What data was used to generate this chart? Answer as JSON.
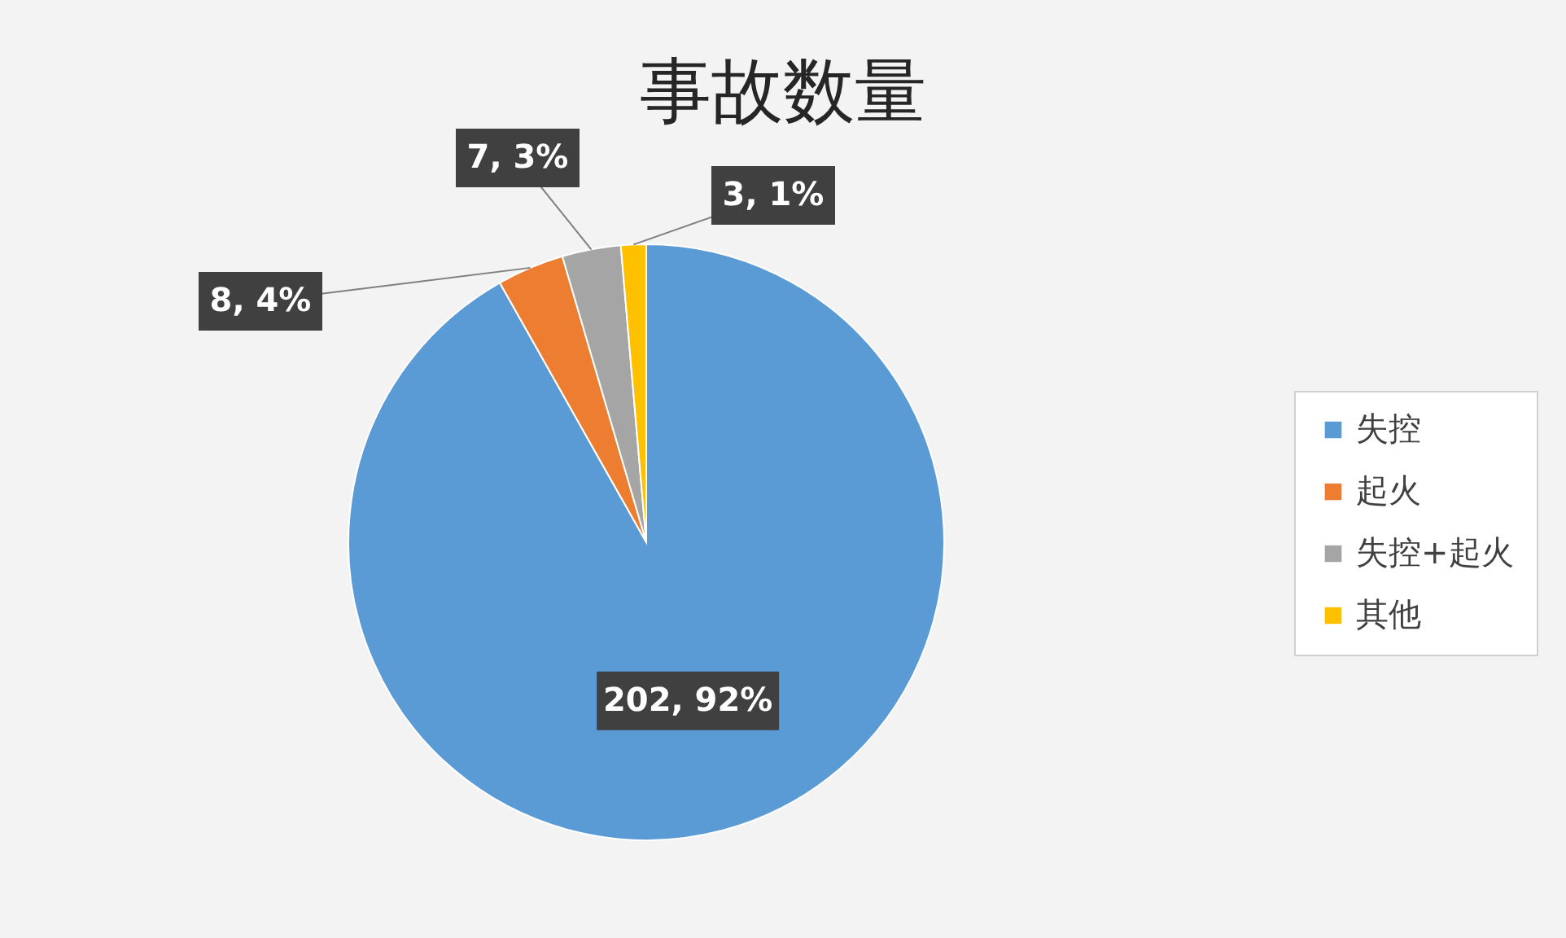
{
  "chart_data": {
    "type": "pie",
    "title": "事故数量",
    "categories": [
      "失控",
      "起火",
      "失控+起火",
      "其他"
    ],
    "values": [
      202,
      8,
      7,
      3
    ],
    "colors": [
      "#5b9bd5",
      "#ed7d31",
      "#a5a5a5",
      "#ffc000"
    ],
    "value_labels": [
      "202, 92%",
      "8, 4%",
      "7, 3%",
      "3, 1%"
    ],
    "legend": "right"
  }
}
